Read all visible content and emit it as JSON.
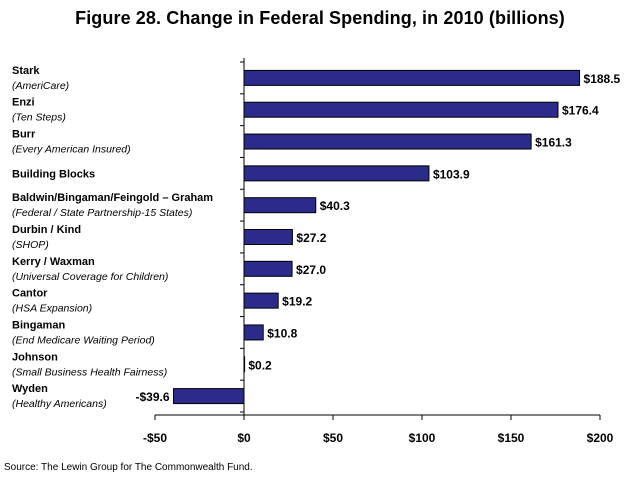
{
  "title": "Figure 28. Change in Federal Spending, in 2010 (billions)",
  "source": "Source: The Lewin Group for The Commonwealth Fund.",
  "chart_data": {
    "type": "bar",
    "orientation": "horizontal",
    "title": "Figure 28. Change in Federal Spending, in 2010 (billions)",
    "categories": [
      {
        "name": "Stark",
        "sub": "(AmeriCare)"
      },
      {
        "name": "Enzi",
        "sub": "(Ten Steps)"
      },
      {
        "name": "Burr",
        "sub": "(Every American Insured)"
      },
      {
        "name": "Building Blocks",
        "sub": ""
      },
      {
        "name": "Baldwin/Bingaman/Feingold – Graham",
        "sub": "(Federal / State Partnership-15 States)"
      },
      {
        "name": "Durbin / Kind",
        "sub": "(SHOP)"
      },
      {
        "name": "Kerry / Waxman",
        "sub": "(Universal Coverage for Children)"
      },
      {
        "name": "Cantor",
        "sub": "(HSA Expansion)"
      },
      {
        "name": "Bingaman",
        "sub": "(End Medicare Waiting Period)"
      },
      {
        "name": "Johnson",
        "sub": "(Small Business Health Fairness)"
      },
      {
        "name": "Wyden",
        "sub": "(Healthy Americans)"
      }
    ],
    "values": [
      188.5,
      176.4,
      161.3,
      103.9,
      40.3,
      27.2,
      27.0,
      19.2,
      10.8,
      0.2,
      -39.6
    ],
    "value_labels": [
      "$188.5",
      "$176.4",
      "$161.3",
      "$103.9",
      "$40.3",
      "$27.2",
      "$27.0",
      "$19.2",
      "$10.8",
      "$0.2",
      "-$39.6"
    ],
    "xlim": [
      -50,
      200
    ],
    "xticks": [
      -50,
      0,
      50,
      100,
      150,
      200
    ],
    "xtick_labels": [
      "-$50",
      "$0",
      "$50",
      "$100",
      "$150",
      "$200"
    ],
    "grid": false,
    "legend": "none",
    "bar_color": "#2b2b8c",
    "bar_edge_color": "#000000"
  }
}
